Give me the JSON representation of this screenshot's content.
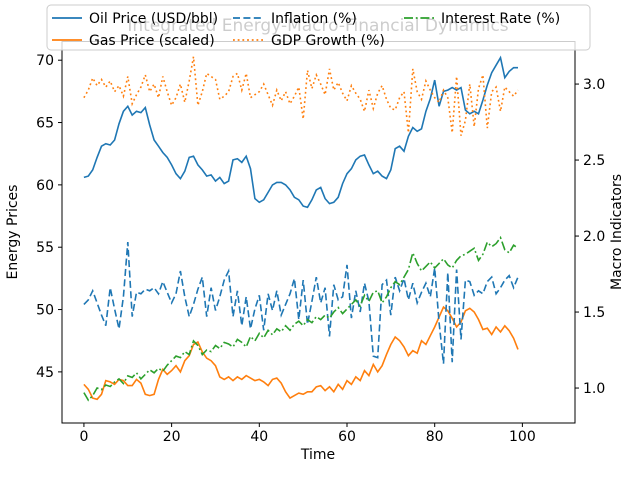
{
  "chart_data": {
    "type": "line",
    "title": "Integrated Energy-Macro-Financial Dynamics",
    "title_color": "#c8c8c8",
    "xlabel": "Time",
    "ylabel_left": "Energy Prices",
    "ylabel_right": "Macro Indicators",
    "x_tick_labels": [
      "0",
      "20",
      "40",
      "60",
      "80",
      "100"
    ],
    "y_tick_labels_left": [
      "45",
      "50",
      "55",
      "60",
      "65",
      "70"
    ],
    "y_tick_labels_right": [
      "1.0",
      "1.5",
      "2.0",
      "2.5",
      "3.0"
    ],
    "xlim": [
      -5,
      112
    ],
    "ylim_left": [
      40.9,
      71.5
    ],
    "ylim_right": [
      0.77,
      3.28
    ],
    "grid": false,
    "legend": {
      "position": "upper center",
      "ncol": 3,
      "frame": true,
      "framealpha": 0.8
    },
    "x": [
      0,
      1,
      2,
      3,
      4,
      5,
      6,
      7,
      8,
      9,
      10,
      11,
      12,
      13,
      14,
      15,
      16,
      17,
      18,
      19,
      20,
      21,
      22,
      23,
      24,
      25,
      26,
      27,
      28,
      29,
      30,
      31,
      32,
      33,
      34,
      35,
      36,
      37,
      38,
      39,
      40,
      41,
      42,
      43,
      44,
      45,
      46,
      47,
      48,
      49,
      50,
      51,
      52,
      53,
      54,
      55,
      56,
      57,
      58,
      59,
      60,
      61,
      62,
      63,
      64,
      65,
      66,
      67,
      68,
      69,
      70,
      71,
      72,
      73,
      74,
      75,
      76,
      77,
      78,
      79,
      80,
      81,
      82,
      83,
      84,
      85,
      86,
      87,
      88,
      89,
      90,
      91,
      92,
      93,
      94,
      95,
      96,
      97,
      98,
      99
    ],
    "series": [
      {
        "name": "Oil Price (USD/bbl)",
        "color": "#1f77b4",
        "linestyle": "solid",
        "axis": "left",
        "values": [
          60.6,
          60.7,
          61.2,
          62.2,
          63.1,
          63.3,
          63.2,
          63.6,
          64.9,
          65.9,
          66.3,
          65.6,
          65.9,
          65.8,
          66.2,
          64.8,
          63.6,
          63.1,
          62.6,
          62.2,
          61.6,
          60.9,
          60.5,
          61.1,
          62.2,
          62.3,
          61.6,
          61.2,
          60.7,
          60.8,
          60.3,
          60.6,
          60.1,
          60.3,
          62.0,
          62.1,
          61.8,
          62.3,
          61.3,
          58.9,
          58.6,
          58.8,
          59.4,
          60.0,
          60.2,
          60.2,
          60.0,
          59.6,
          59.0,
          58.8,
          58.3,
          58.2,
          58.8,
          59.6,
          59.8,
          58.9,
          58.5,
          58.6,
          59.0,
          60.1,
          60.9,
          61.3,
          62.0,
          62.3,
          62.4,
          61.6,
          60.9,
          61.1,
          60.7,
          60.5,
          61.2,
          62.9,
          63.1,
          62.7,
          63.9,
          64.6,
          64.3,
          64.5,
          65.9,
          66.9,
          68.4,
          66.3,
          67.5,
          67.6,
          67.8,
          67.6,
          67.8,
          66.0,
          65.7,
          65.9,
          65.7,
          66.8,
          68.0,
          69.0,
          69.6,
          70.2,
          68.6,
          69.1,
          69.4,
          69.4
        ]
      },
      {
        "name": "Gas Price (scaled)",
        "color": "#ff7f0e",
        "linestyle": "solid",
        "axis": "left",
        "values": [
          44.0,
          43.6,
          42.9,
          42.8,
          43.2,
          44.3,
          44.2,
          44.0,
          44.4,
          44.3,
          43.9,
          43.9,
          44.4,
          44.1,
          43.2,
          43.1,
          43.2,
          44.4,
          45.2,
          44.8,
          45.1,
          45.5,
          45.0,
          45.9,
          46.3,
          47.2,
          47.4,
          46.6,
          46.1,
          45.9,
          45.5,
          44.6,
          44.4,
          44.6,
          44.3,
          44.6,
          44.4,
          44.7,
          44.5,
          44.3,
          44.4,
          44.2,
          43.9,
          44.4,
          44.5,
          44.1,
          43.4,
          42.9,
          43.1,
          43.3,
          43.2,
          43.4,
          43.4,
          43.8,
          43.9,
          43.5,
          43.8,
          43.4,
          44.0,
          43.6,
          44.3,
          44.0,
          44.6,
          44.3,
          45.1,
          44.7,
          45.6,
          45.0,
          45.5,
          46.4,
          47.2,
          47.8,
          47.5,
          47.0,
          46.3,
          46.7,
          46.5,
          47.5,
          47.2,
          47.9,
          48.6,
          49.4,
          50.2,
          49.9,
          49.3,
          48.6,
          49.0,
          49.9,
          50.1,
          49.8,
          49.2,
          48.4,
          48.5,
          48.0,
          48.6,
          48.2,
          48.7,
          48.3,
          47.7,
          46.8
        ]
      },
      {
        "name": "Inflation (%)",
        "color": "#1f77b4",
        "linestyle": "dashed",
        "axis": "right",
        "values": [
          1.55,
          1.58,
          1.64,
          1.56,
          1.48,
          1.41,
          1.66,
          1.52,
          1.39,
          1.6,
          1.96,
          1.47,
          1.63,
          1.62,
          1.65,
          1.64,
          1.66,
          1.62,
          1.7,
          1.63,
          1.56,
          1.62,
          1.77,
          1.6,
          1.47,
          1.55,
          1.65,
          1.73,
          1.47,
          1.66,
          1.51,
          1.6,
          1.71,
          1.77,
          1.47,
          1.64,
          1.41,
          1.6,
          1.39,
          1.52,
          1.61,
          1.38,
          1.62,
          1.51,
          1.64,
          1.48,
          1.55,
          1.62,
          1.72,
          1.45,
          1.71,
          1.42,
          1.57,
          1.73,
          1.56,
          1.66,
          1.34,
          1.68,
          1.58,
          1.6,
          1.81,
          1.46,
          1.64,
          1.5,
          1.69,
          1.57,
          1.21,
          1.2,
          1.68,
          1.71,
          1.48,
          1.73,
          1.64,
          1.72,
          1.58,
          1.69,
          1.56,
          1.63,
          1.69,
          1.6,
          1.79,
          1.43,
          1.16,
          1.76,
          1.17,
          1.78,
          1.32,
          1.71,
          1.7,
          1.61,
          1.64,
          1.62,
          1.7,
          1.73,
          1.62,
          1.66,
          1.71,
          1.74,
          1.66,
          1.73
        ]
      },
      {
        "name": "GDP Growth (%)",
        "color": "#ff7f0e",
        "linestyle": "dotted",
        "axis": "right",
        "values": [
          2.91,
          2.96,
          3.04,
          2.99,
          3.03,
          2.98,
          3.02,
          2.95,
          2.99,
          2.92,
          3.05,
          2.87,
          2.93,
          2.98,
          3.06,
          2.95,
          3.0,
          2.91,
          3.05,
          2.95,
          2.86,
          2.91,
          3.0,
          2.88,
          3.02,
          3.18,
          2.86,
          2.95,
          3.07,
          3.05,
          3.03,
          2.9,
          2.92,
          2.95,
          3.05,
          3.07,
          2.96,
          3.07,
          2.91,
          2.93,
          2.95,
          3.0,
          2.93,
          2.86,
          2.96,
          2.89,
          2.95,
          2.87,
          2.92,
          2.98,
          2.77,
          3.09,
          2.97,
          3.06,
          3.0,
          2.93,
          3.1,
          2.96,
          3.01,
          2.94,
          2.89,
          2.99,
          2.94,
          2.9,
          2.82,
          2.96,
          2.84,
          2.94,
          2.99,
          2.9,
          2.84,
          2.83,
          2.91,
          2.95,
          2.68,
          3.1,
          2.95,
          2.9,
          3.02,
          2.96,
          2.91,
          2.88,
          2.96,
          2.91,
          2.68,
          3.05,
          2.66,
          2.76,
          3.0,
          2.72,
          2.97,
          3.06,
          2.71,
          2.95,
          2.98,
          2.82,
          2.98,
          2.95,
          2.92,
          2.96
        ]
      },
      {
        "name": "Interest Rate (%)",
        "color": "#2ca02c",
        "linestyle": "dashdot",
        "axis": "right",
        "values": [
          0.97,
          0.92,
          0.95,
          1.0,
          0.99,
          1.02,
          1.01,
          1.04,
          1.06,
          1.03,
          1.08,
          1.07,
          1.1,
          1.06,
          1.09,
          1.12,
          1.1,
          1.13,
          1.11,
          1.15,
          1.18,
          1.21,
          1.2,
          1.24,
          1.22,
          1.31,
          1.28,
          1.22,
          1.25,
          1.24,
          1.28,
          1.26,
          1.3,
          1.29,
          1.27,
          1.32,
          1.3,
          1.27,
          1.34,
          1.31,
          1.36,
          1.33,
          1.38,
          1.35,
          1.39,
          1.37,
          1.41,
          1.38,
          1.42,
          1.44,
          1.41,
          1.45,
          1.43,
          1.47,
          1.45,
          1.48,
          1.46,
          1.5,
          1.53,
          1.49,
          1.52,
          1.55,
          1.58,
          1.54,
          1.61,
          1.57,
          1.63,
          1.64,
          1.56,
          1.6,
          1.66,
          1.7,
          1.68,
          1.73,
          1.78,
          1.89,
          1.82,
          1.77,
          1.8,
          1.83,
          1.79,
          1.82,
          1.85,
          1.81,
          1.79,
          1.84,
          1.87,
          1.88,
          1.9,
          1.92,
          1.84,
          1.88,
          1.96,
          1.93,
          1.95,
          1.99,
          1.91,
          1.89,
          1.94,
          1.92
        ]
      }
    ]
  }
}
